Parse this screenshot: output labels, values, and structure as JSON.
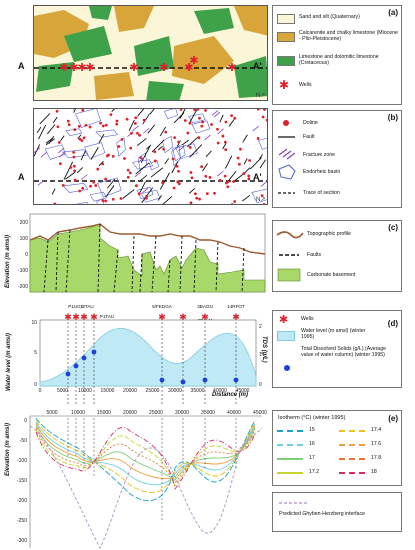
{
  "panels": {
    "a": {
      "label": "(a)"
    },
    "b": {
      "label": "(b)"
    },
    "c": {
      "label": "(c)"
    },
    "d": {
      "label": "(d)"
    },
    "e": {
      "label": "(e)"
    }
  },
  "section_ends": {
    "start": "A",
    "end": "A'"
  },
  "colors": {
    "sand": "#fbf6d8",
    "calcarenite": "#d7a53a",
    "limestone": "#3fa24a",
    "water": "#bfe9f5",
    "basement": "#a8d86a",
    "topo": "#9b5a2c",
    "wells": "#e0202a",
    "fracture": "#8a3fbf",
    "basin": "#5562d6",
    "tds": "#1e3fd8"
  },
  "legend_a": {
    "items": [
      {
        "text": "Sand and silt (Quaternary)"
      },
      {
        "text": "Calcarenite and chalky limestone (Miocene - Plio-Pleistocene)"
      },
      {
        "text": "Limestone and dolomitic limestone (Cretaceous)"
      },
      {
        "text": "Wells"
      }
    ]
  },
  "legend_b": {
    "items": [
      {
        "text": "Doline"
      },
      {
        "text": "Fault"
      },
      {
        "text": "Fracture zone"
      },
      {
        "text": "Endorheic basin"
      },
      {
        "text": "Trace of section"
      }
    ]
  },
  "legend_c": {
    "items": [
      {
        "text": "Topographic profile"
      },
      {
        "text": "Faults"
      },
      {
        "text": "Carbonate basement"
      }
    ]
  },
  "legend_d": {
    "items": [
      {
        "text": "Wells"
      },
      {
        "text": "Water level (m amsl) (winter 1995)"
      },
      {
        "text": "Total Dissolved Solids (g/L) (Average value of water column) (winter 1995)"
      }
    ]
  },
  "legend_e": {
    "title": "Isotherm (°C) (winter 1995)",
    "items": [
      {
        "text": "15",
        "color": "#1aa3c8"
      },
      {
        "text": "17.4",
        "color": "#e6c21b"
      },
      {
        "text": "16",
        "color": "#6fcfe0"
      },
      {
        "text": "17.6",
        "color": "#f0a040"
      },
      {
        "text": "17",
        "color": "#7ccf7c"
      },
      {
        "text": "17.8",
        "color": "#e8743a"
      },
      {
        "text": "17.2",
        "color": "#c8d632"
      },
      {
        "text": "18",
        "color": "#d42a6a"
      }
    ],
    "interface": "Predicted Ghyben-Herzberg interface"
  },
  "chart_c": {
    "ylabel": "Elevation (m amsl)",
    "yticks": [
      "200",
      "100",
      "0",
      "-100",
      "-200"
    ]
  },
  "chart_d": {
    "ylabel": "Water level (m amsl)",
    "y2label": "TDS (g/L)",
    "yticks": [
      "10",
      "5",
      "0"
    ],
    "y2ticks": [
      "2",
      "1",
      "0"
    ],
    "xlabel": "Distance (m)",
    "xticks": [
      "0",
      "5000",
      "10000",
      "15000",
      "20000",
      "25000",
      "30000",
      "35000",
      "40000",
      "45000"
    ],
    "wells_upper": [
      "P1UGE",
      "3TAU",
      "P1TAU",
      "6/FEDGA",
      "3BAGN",
      "14RFOT"
    ],
    "wells_lower": [
      "7TAU",
      "1SAN",
      "2PALM"
    ]
  },
  "chart_e": {
    "ylabel": "Elevation (m amsl)",
    "xticks": [
      "5000",
      "10000",
      "15000",
      "20000",
      "25000",
      "30000",
      "35000",
      "40000",
      "45000"
    ],
    "yticks": [
      "0",
      "-50",
      "-100",
      "-150",
      "-200",
      "-250",
      "-300"
    ]
  }
}
